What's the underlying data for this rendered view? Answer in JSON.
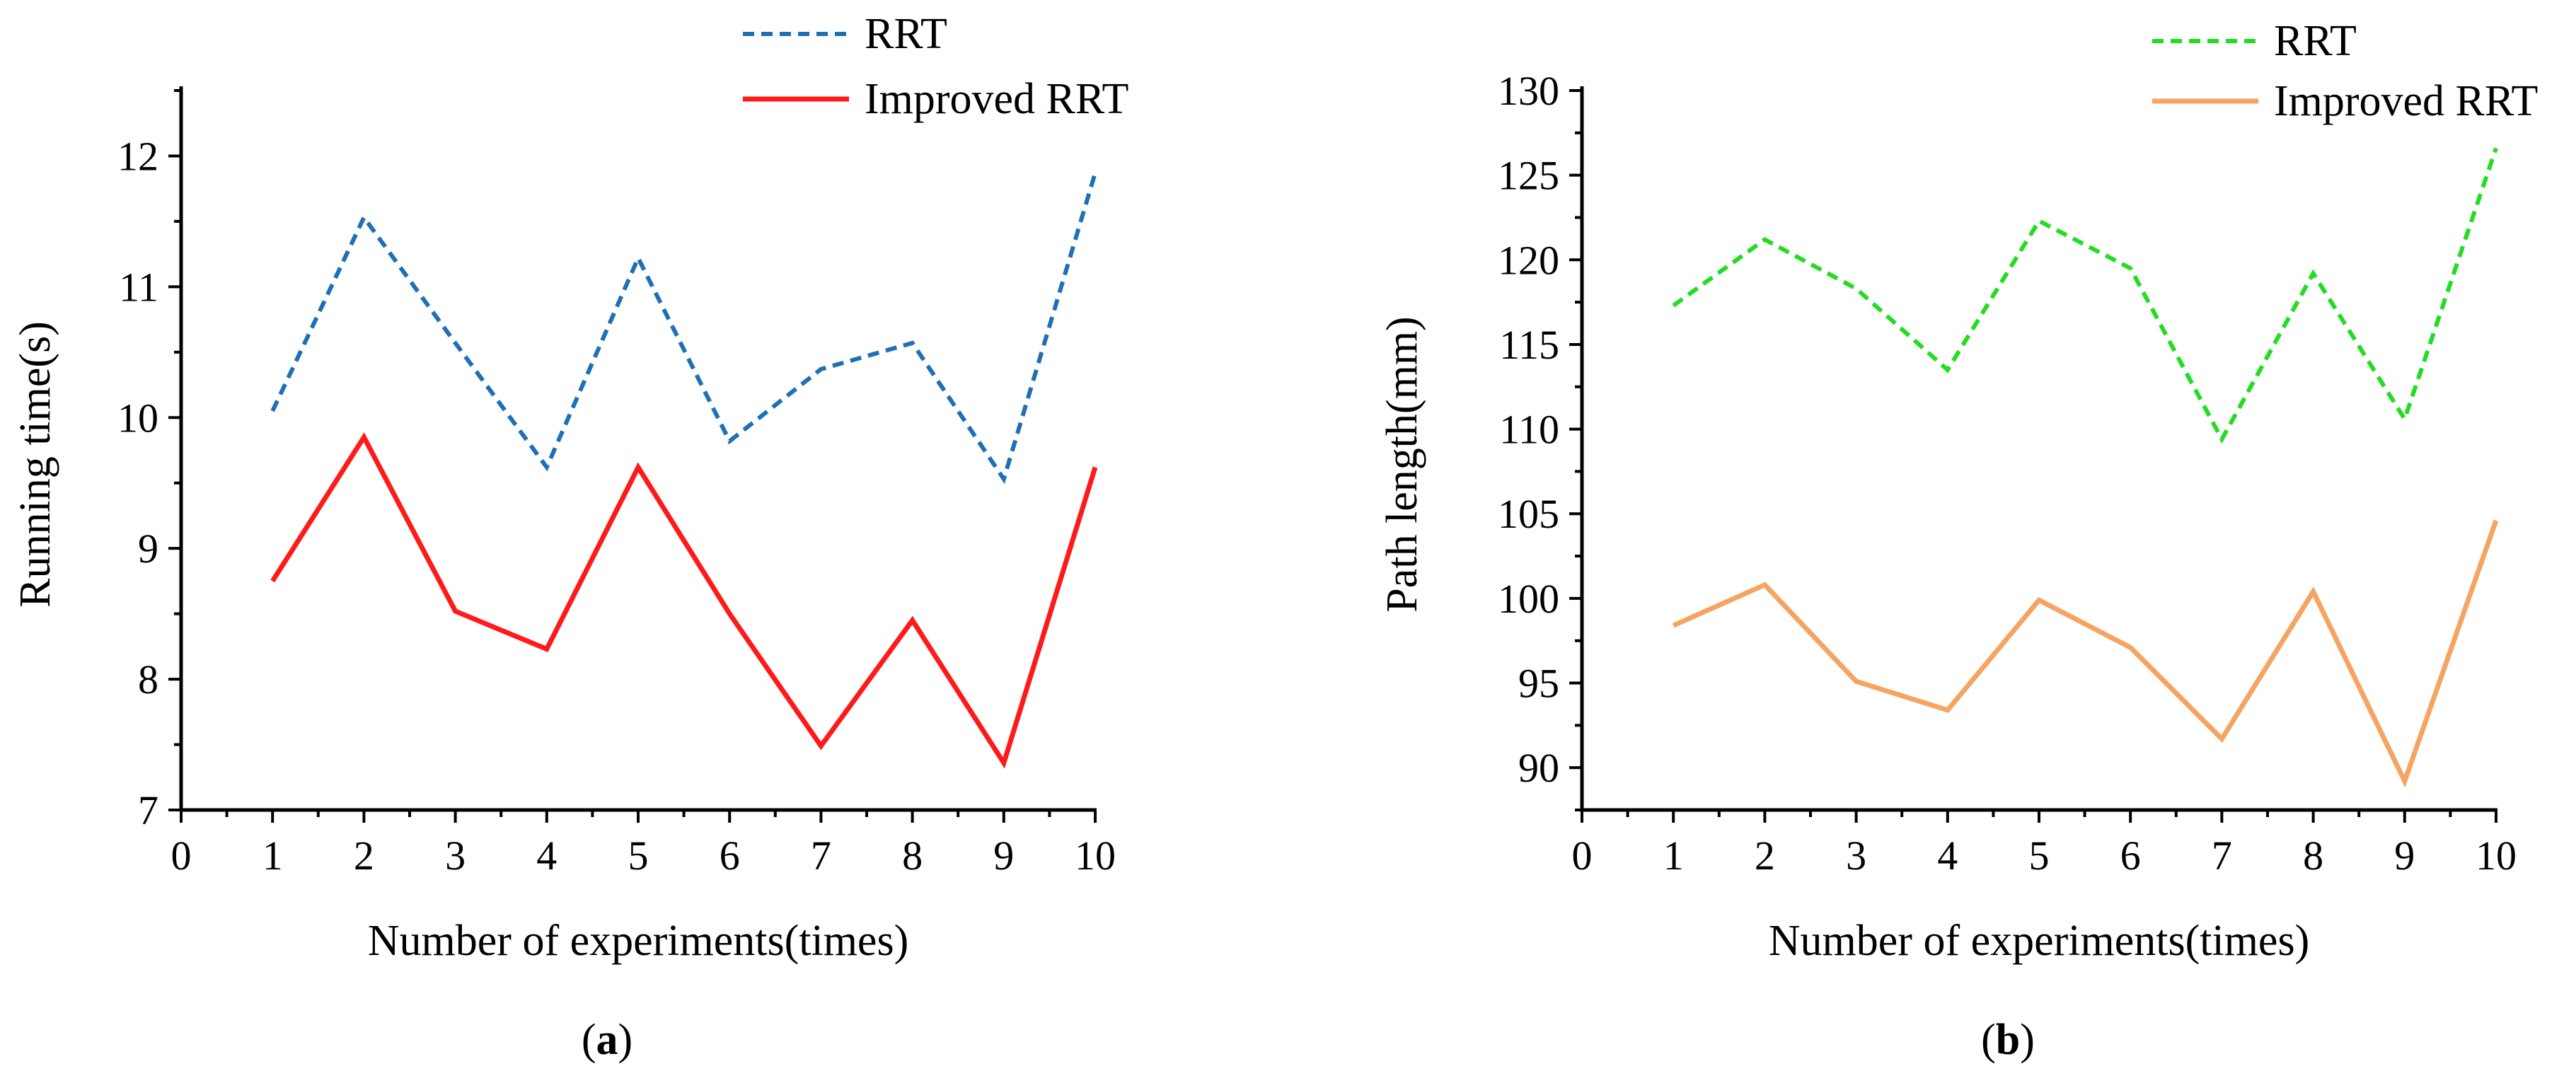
{
  "charts": [
    {
      "id": "a",
      "caption_letter": "a",
      "chart_data": {
        "type": "line",
        "title": "",
        "xlabel": "Number of experiments(times)",
        "ylabel": "Running time(s)",
        "xlim": [
          0,
          10
        ],
        "ylim": [
          7,
          12.5
        ],
        "x_ticks": [
          0,
          1,
          2,
          3,
          4,
          5,
          6,
          7,
          8,
          9,
          10
        ],
        "y_ticks": [
          7,
          8,
          9,
          10,
          11,
          12
        ],
        "x": [
          1,
          2,
          3,
          4,
          5,
          6,
          7,
          8,
          9,
          10
        ],
        "legend_position": "top-right",
        "series": [
          {
            "name": "RRT",
            "style": "dashed",
            "color": "#1f6fb5",
            "values": [
              10.05,
              11.53,
              10.57,
              9.62,
              11.22,
              9.82,
              10.37,
              10.57,
              9.53,
              11.87
            ]
          },
          {
            "name": "Improved RRT",
            "style": "solid",
            "color": "#ff1a1a",
            "values": [
              8.75,
              9.85,
              8.52,
              8.23,
              9.62,
              8.5,
              7.49,
              8.45,
              7.36,
              9.62
            ]
          }
        ]
      }
    },
    {
      "id": "b",
      "caption_letter": "b",
      "chart_data": {
        "type": "line",
        "title": "",
        "xlabel": "Number of experiments(times)",
        "ylabel": "Path length(mm)",
        "xlim": [
          0,
          10
        ],
        "ylim": [
          87.5,
          130
        ],
        "x_ticks": [
          0,
          1,
          2,
          3,
          4,
          5,
          6,
          7,
          8,
          9,
          10
        ],
        "y_ticks": [
          90,
          95,
          100,
          105,
          110,
          115,
          120,
          125,
          130
        ],
        "x": [
          1,
          2,
          3,
          4,
          5,
          6,
          7,
          8,
          9,
          10
        ],
        "legend_position": "top-right",
        "series": [
          {
            "name": "RRT",
            "style": "dashed",
            "color": "#22dd22",
            "values": [
              117.3,
              121.2,
              118.3,
              113.5,
              122.3,
              119.5,
              109.4,
              119.2,
              110.6,
              126.6
            ]
          },
          {
            "name": "Improved RRT",
            "style": "solid",
            "color": "#f5a461",
            "values": [
              98.4,
              100.8,
              95.1,
              93.4,
              99.9,
              97.1,
              91.7,
              100.4,
              89.2,
              104.6
            ]
          }
        ]
      }
    }
  ]
}
